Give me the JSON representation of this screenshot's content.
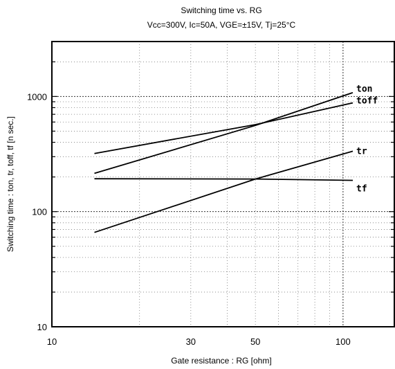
{
  "chart_data": {
    "type": "line",
    "title": "Switching time  vs.  RG",
    "subtitle": "Vcc=300V, Ic=50A, VGE=±15V, Tj=25°C",
    "xlabel": "Gate  resistance  :  RG [ohm]",
    "ylabel": "Switching  time  :  ton, tr, toff, tf  [n sec.]",
    "xscale": "log",
    "yscale": "log",
    "xlim": [
      10,
      150
    ],
    "ylim": [
      10,
      3000
    ],
    "x_ticks": [
      10,
      30,
      50,
      100
    ],
    "y_ticks": [
      10,
      100,
      1000
    ],
    "grid": true,
    "series": [
      {
        "name": "ton",
        "x": [
          14,
          50,
          108
        ],
        "y": [
          215,
          560,
          1080
        ]
      },
      {
        "name": "toff",
        "x": [
          14,
          50,
          108
        ],
        "y": [
          320,
          570,
          880
        ]
      },
      {
        "name": "tr",
        "x": [
          14,
          50,
          108
        ],
        "y": [
          66,
          192,
          335
        ]
      },
      {
        "name": "tf",
        "x": [
          14,
          50,
          108
        ],
        "y": [
          193,
          192,
          187
        ]
      }
    ]
  }
}
